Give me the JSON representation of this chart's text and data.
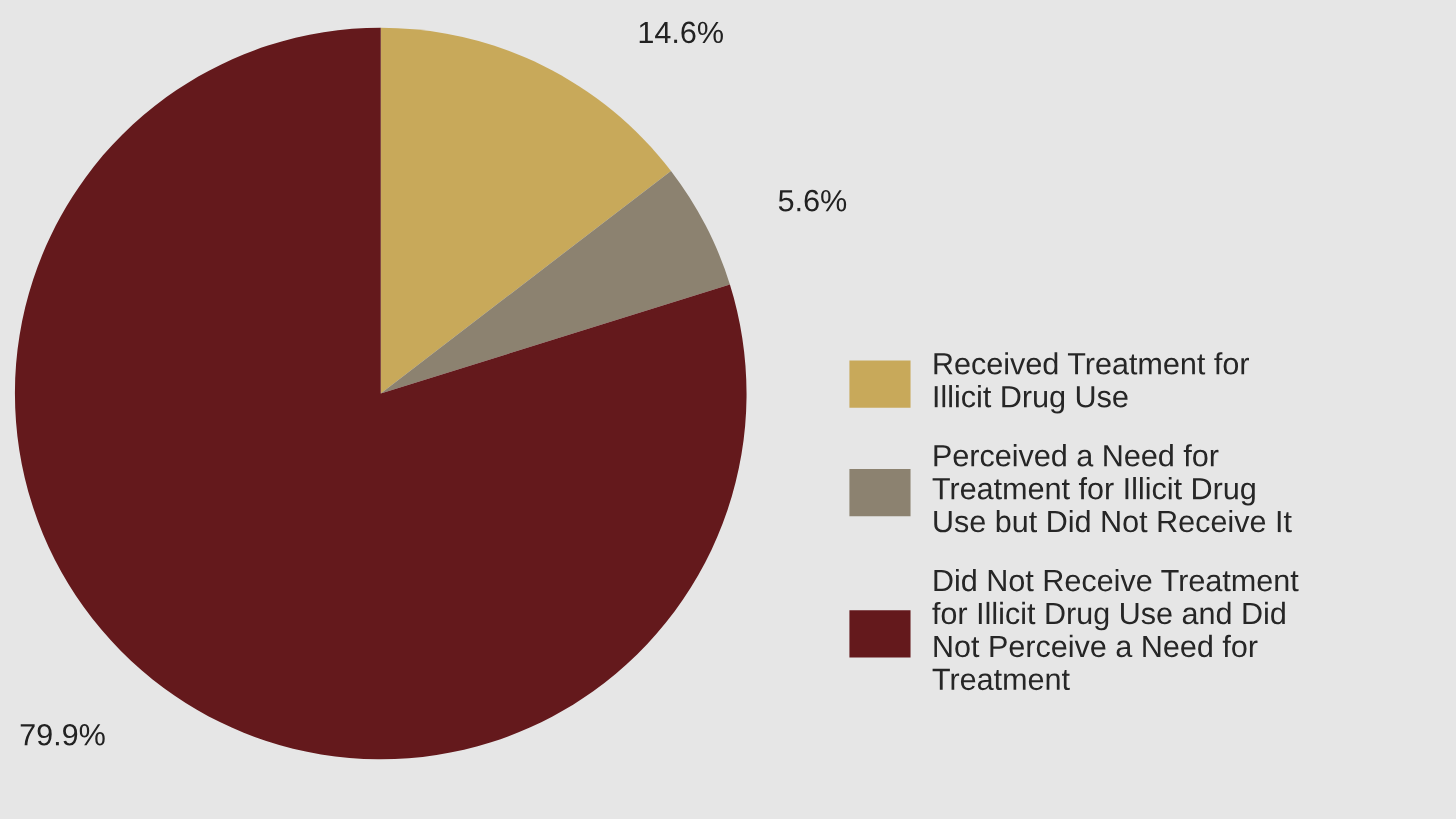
{
  "chart_data": {
    "type": "pie",
    "categories": [
      "Received Treatment for Illicit Drug Use",
      "Perceived a Need for Treatment for Illicit Drug Use but Did Not Receive It",
      "Did Not Receive Treatment for Illicit Drug Use and Did Not Perceive a Need for Treatment"
    ],
    "values": [
      14.6,
      5.6,
      79.9
    ],
    "value_labels": [
      "14.6%",
      "5.6%",
      "79.9%"
    ],
    "colors": [
      "#c8a95a",
      "#8c8270",
      "#64191c"
    ],
    "legend": "right"
  }
}
